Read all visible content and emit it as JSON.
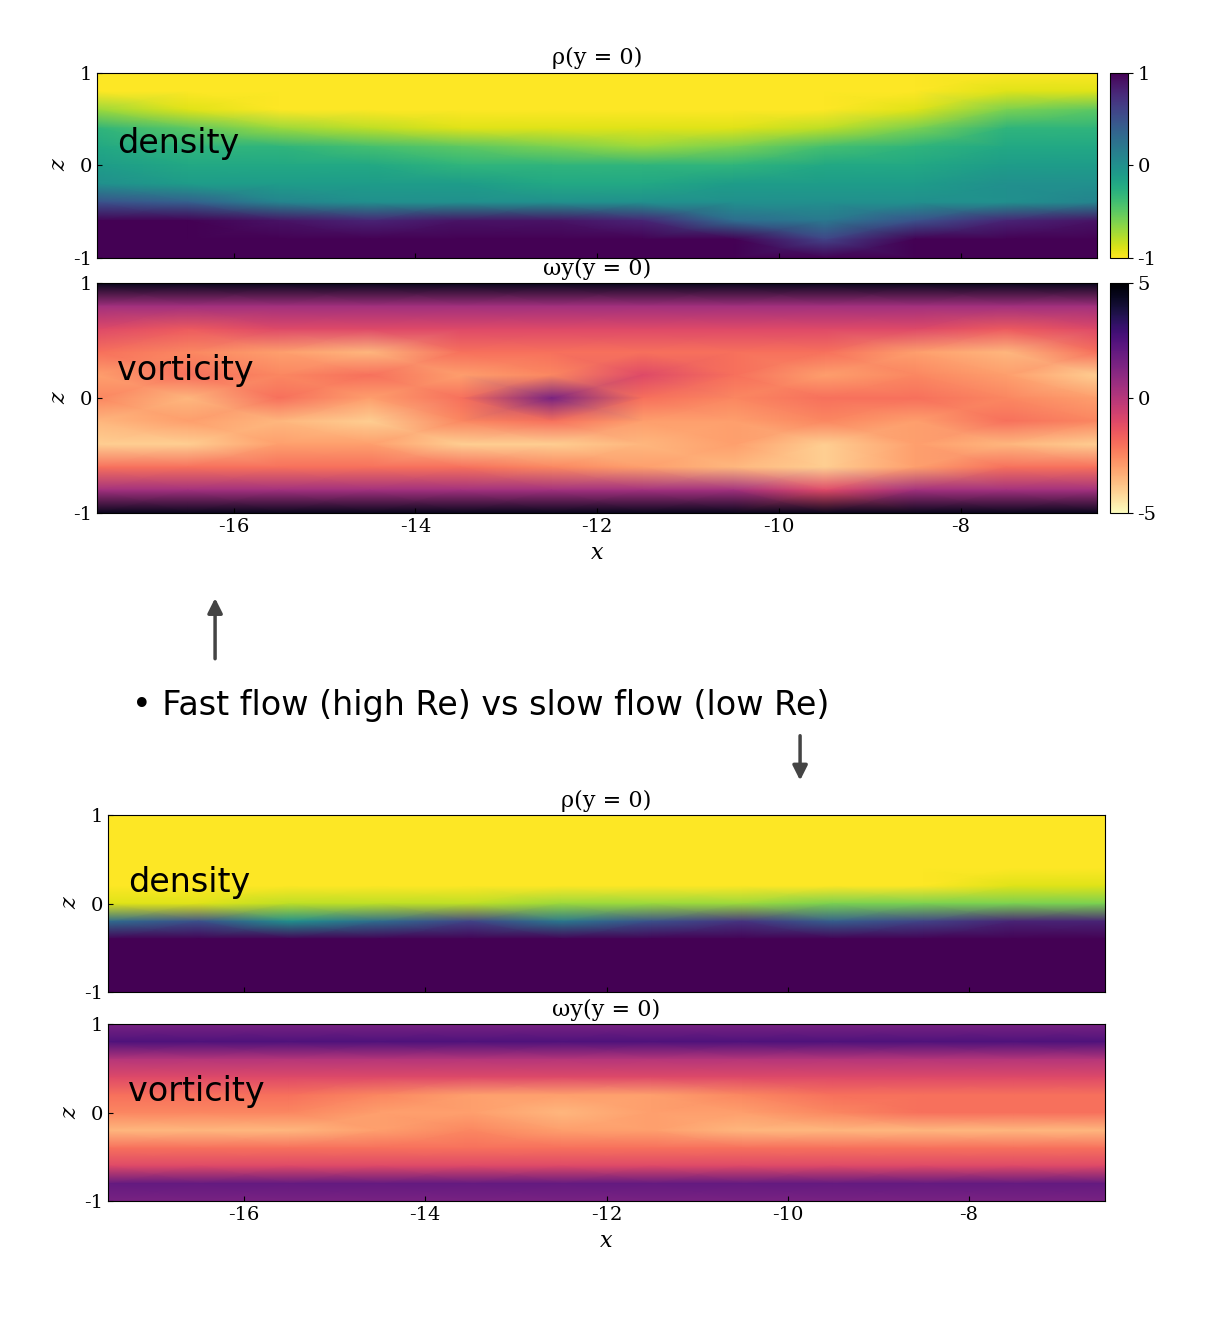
{
  "chart_data": [
    {
      "type": "heatmap",
      "title": "ρ(y = 0)",
      "ylabel": "z",
      "label": "density",
      "tick_labels": "y",
      "color": "viridis_r",
      "color_range": [
        -1,
        1
      ],
      "colorbar_ticks": [
        -1,
        0,
        1
      ],
      "xlim": [
        -17.5,
        -6.5
      ],
      "xticks": [
        -16,
        -14,
        -12,
        -10,
        -8
      ],
      "ylim": [
        -1,
        1
      ],
      "yticks": [
        -1,
        0,
        1
      ],
      "x": [
        -17.5,
        -16.5,
        -15.5,
        -14.5,
        -13.5,
        -12.5,
        -11.5,
        -10.5,
        -9.5,
        -8.5,
        -7.5,
        -6.5
      ],
      "z": [
        1,
        0.8,
        0.6,
        0.4,
        0.2,
        0,
        -0.2,
        -0.4,
        -0.6,
        -0.8,
        -1
      ],
      "cells": [
        [
          -1,
          -1,
          -1,
          -1,
          -1,
          -1,
          -1,
          -1,
          -1,
          -1,
          -1,
          -1
        ],
        [
          -1,
          -1,
          -1,
          -1,
          -1,
          -1,
          -1,
          -1,
          -1,
          -1,
          -0.9,
          -0.9
        ],
        [
          -0.7,
          -0.9,
          -1,
          -1,
          -1,
          -1,
          -1,
          -1,
          -1,
          -0.9,
          -0.6,
          -0.5
        ],
        [
          -0.3,
          -0.5,
          -0.7,
          -0.8,
          -0.9,
          -0.9,
          -0.9,
          -0.9,
          -0.8,
          -0.6,
          -0.3,
          -0.3
        ],
        [
          -0.2,
          -0.3,
          -0.3,
          -0.4,
          -0.5,
          -0.6,
          -0.7,
          -0.6,
          -0.4,
          -0.3,
          -0.2,
          -0.2
        ],
        [
          -0.1,
          -0.2,
          -0.2,
          -0.2,
          -0.3,
          -0.3,
          -0.3,
          -0.3,
          -0.2,
          -0.2,
          -0.1,
          -0.1
        ],
        [
          0,
          -0.1,
          -0.1,
          -0.1,
          -0.1,
          -0.2,
          -0.2,
          -0.1,
          -0.1,
          -0.1,
          0,
          0
        ],
        [
          0.5,
          0.4,
          0.1,
          0,
          0,
          0,
          0,
          0,
          0,
          0,
          0,
          0.1
        ],
        [
          1,
          1,
          0.9,
          0.8,
          0.9,
          0.9,
          0.8,
          0.3,
          0.2,
          0.5,
          0.8,
          0.9
        ],
        [
          1,
          1,
          1,
          1,
          1,
          1,
          1,
          1,
          0.6,
          1,
          1,
          1
        ],
        [
          1,
          1,
          1,
          1,
          1,
          1,
          1,
          1,
          1,
          1,
          1,
          1
        ]
      ]
    },
    {
      "type": "heatmap",
      "title": "ωy(y = 0)",
      "xlabel": "x",
      "ylabel": "z",
      "label": "vorticity",
      "color": "magma_r",
      "color_range": [
        -5,
        5
      ],
      "colorbar_ticks": [
        -5,
        0,
        5
      ],
      "xlim": [
        -17.5,
        -6.5
      ],
      "xticks": [
        -16,
        -14,
        -12,
        -10,
        -8
      ],
      "ylim": [
        -1,
        1
      ],
      "yticks": [
        -1,
        0,
        1
      ],
      "x": [
        -17.5,
        -16.5,
        -15.5,
        -14.5,
        -13.5,
        -12.5,
        -11.5,
        -10.5,
        -9.5,
        -8.5,
        -7.5,
        -6.5
      ],
      "z": [
        1,
        0.8,
        0.6,
        0.4,
        0.2,
        0,
        -0.2,
        -0.4,
        -0.6,
        -0.8,
        -1
      ],
      "cells": [
        [
          4.5,
          4.5,
          4.5,
          4.5,
          4.5,
          4.5,
          4.5,
          4.5,
          4.5,
          4.5,
          4.5,
          4.5
        ],
        [
          0.5,
          0.5,
          0.5,
          0.5,
          0.5,
          0.5,
          0.5,
          0.5,
          0.5,
          0.5,
          0.5,
          0.5
        ],
        [
          -1,
          -1.5,
          -1,
          -1,
          -1,
          -1,
          -1,
          -1,
          -1,
          -1,
          -1.5,
          -1
        ],
        [
          -2,
          -2.5,
          -3,
          -3.5,
          -2,
          -2,
          -2,
          -2,
          -2,
          -3,
          -3.5,
          -2
        ],
        [
          -3,
          -2,
          -2.5,
          -2,
          -3,
          -2.5,
          -1,
          -2,
          -3,
          -2.5,
          -3,
          -4
        ],
        [
          -2.5,
          -3.5,
          -2,
          -3,
          -2,
          1.5,
          -2,
          -2.5,
          -2,
          -2,
          -2.5,
          -3
        ],
        [
          -3.5,
          -3,
          -3.5,
          -4,
          -2.5,
          -2,
          -3,
          -3,
          -2.5,
          -3,
          -2,
          -2.5
        ],
        [
          -4,
          -4,
          -3,
          -3,
          -4,
          -4,
          -3.5,
          -3,
          -4,
          -3,
          -3.5,
          -4
        ],
        [
          -2,
          -2,
          -2,
          -2,
          -2,
          -2.5,
          -3,
          -3.5,
          -4,
          -3,
          -2,
          -2
        ],
        [
          0.5,
          0.5,
          0.5,
          0.5,
          0.5,
          0.5,
          0.5,
          0.5,
          -1,
          0.5,
          0.5,
          0.5
        ],
        [
          4.5,
          4.5,
          4.5,
          4.5,
          4.5,
          4.5,
          4.5,
          4.5,
          4.5,
          4.5,
          4.5,
          4.5
        ]
      ]
    },
    {
      "type": "heatmap",
      "title": "ρ(y = 0)",
      "ylabel": "z",
      "label": "density",
      "tick_labels": "y",
      "color": "viridis_r",
      "color_range": [
        -1,
        1
      ],
      "xlim": [
        -17.5,
        -6.5
      ],
      "xticks": [
        -16,
        -14,
        -12,
        -10,
        -8
      ],
      "ylim": [
        -1,
        1
      ],
      "yticks": [
        -1,
        0,
        1
      ],
      "x": [
        -17.5,
        -16.5,
        -15.5,
        -14.5,
        -13.5,
        -12.5,
        -11.5,
        -10.5,
        -9.5,
        -8.5,
        -7.5,
        -6.5
      ],
      "z": [
        1,
        0.8,
        0.6,
        0.4,
        0.2,
        0,
        -0.2,
        -0.4,
        -0.6,
        -0.8,
        -1
      ],
      "cells": [
        [
          -1,
          -1,
          -1,
          -1,
          -1,
          -1,
          -1,
          -1,
          -1,
          -1,
          -1,
          -1
        ],
        [
          -1,
          -1,
          -1,
          -1,
          -1,
          -1,
          -1,
          -1,
          -1,
          -1,
          -1,
          -1
        ],
        [
          -1,
          -1,
          -1,
          -1,
          -1,
          -1,
          -1,
          -1,
          -1,
          -1,
          -1,
          -1
        ],
        [
          -1,
          -1,
          -1,
          -1,
          -1,
          -1,
          -1,
          -1,
          -1,
          -1,
          -1,
          -1
        ],
        [
          -1,
          -1,
          -1,
          -1,
          -1,
          -1,
          -1,
          -1,
          -1,
          -1,
          -0.9,
          -0.9
        ],
        [
          -0.9,
          -0.9,
          -0.8,
          -0.8,
          -0.8,
          -0.7,
          -0.7,
          -0.7,
          -0.6,
          -0.6,
          -0.6,
          -0.6
        ],
        [
          0.3,
          0.5,
          0,
          0.3,
          0.6,
          0.2,
          0.5,
          0.7,
          0.4,
          0.6,
          0.8,
          0.8
        ],
        [
          1,
          1,
          1,
          1,
          1,
          1,
          1,
          1,
          1,
          1,
          1,
          1
        ],
        [
          1,
          1,
          1,
          1,
          1,
          1,
          1,
          1,
          1,
          1,
          1,
          1
        ],
        [
          1,
          1,
          1,
          1,
          1,
          1,
          1,
          1,
          1,
          1,
          1,
          1
        ],
        [
          1,
          1,
          1,
          1,
          1,
          1,
          1,
          1,
          1,
          1,
          1,
          1
        ]
      ]
    },
    {
      "type": "heatmap",
      "title": "ωy(y = 0)",
      "xlabel": "x",
      "ylabel": "z",
      "label": "vorticity",
      "color": "magma_r",
      "color_range": [
        -5,
        5
      ],
      "xlim": [
        -17.5,
        -6.5
      ],
      "xticks": [
        -16,
        -14,
        -12,
        -10,
        -8
      ],
      "ylim": [
        -1,
        1
      ],
      "yticks": [
        -1,
        0,
        1
      ],
      "x": [
        -17.5,
        -16.5,
        -15.5,
        -14.5,
        -13.5,
        -12.5,
        -11.5,
        -10.5,
        -9.5,
        -8.5,
        -7.5,
        -6.5
      ],
      "z": [
        1,
        0.8,
        0.6,
        0.4,
        0.2,
        0,
        -0.2,
        -0.4,
        -0.6,
        -0.8,
        -1
      ],
      "cells": [
        [
          1.5,
          1.5,
          1.5,
          1.5,
          1.5,
          1.5,
          1.5,
          1.5,
          1.5,
          1.5,
          1.5,
          1.5
        ],
        [
          2.5,
          2.5,
          2.5,
          2.5,
          2.5,
          2.5,
          2.5,
          2.5,
          2.5,
          2.5,
          2.5,
          2.5
        ],
        [
          0,
          0,
          0,
          0,
          0,
          0,
          0,
          0,
          0,
          0,
          0,
          0
        ],
        [
          -1,
          -1,
          -1,
          -1,
          -1,
          -1,
          -1,
          -1,
          -1,
          -1,
          -1,
          -1
        ],
        [
          -2,
          -2,
          -2,
          -2.5,
          -3,
          -3,
          -3,
          -2.5,
          -2,
          -2,
          -2,
          -2
        ],
        [
          -2.5,
          -2.5,
          -2.5,
          -3,
          -3,
          -3.5,
          -3,
          -3,
          -2.5,
          -2,
          -2,
          -2
        ],
        [
          -3.5,
          -3.5,
          -3.5,
          -3,
          -2.5,
          -3,
          -3,
          -3.5,
          -3.5,
          -3.5,
          -3.5,
          -3.5
        ],
        [
          -2,
          -2,
          -2,
          -2,
          -2,
          -2,
          -2,
          -2,
          -2,
          -2,
          -2,
          -2
        ],
        [
          -1,
          -1,
          -1,
          -1,
          -1,
          -1,
          -1,
          -1,
          -1,
          -1,
          -1,
          -1
        ],
        [
          2,
          2,
          2,
          2,
          2,
          2,
          2,
          2,
          2,
          2,
          2,
          2
        ],
        [
          1.5,
          1.5,
          1.5,
          1.5,
          1.5,
          1.5,
          1.5,
          1.5,
          1.5,
          1.5,
          1.5,
          1.5
        ]
      ]
    }
  ],
  "annotation": "• Fast flow (high Re) vs slow flow (low Re)"
}
